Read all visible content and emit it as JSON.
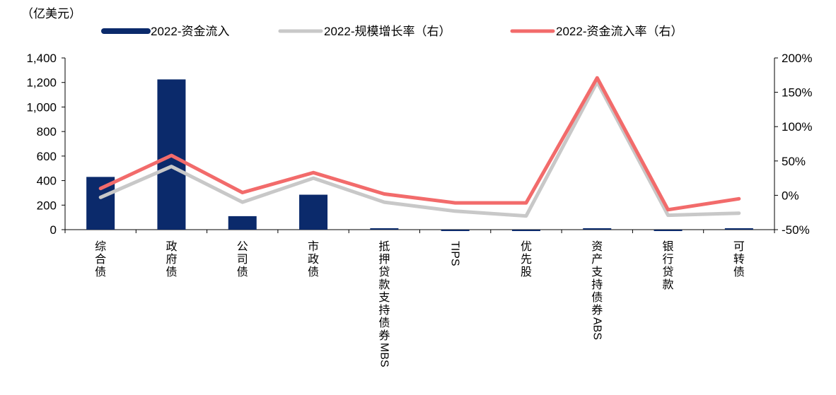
{
  "chart_data": {
    "type": "bar",
    "unit_label": "（亿美元）",
    "categories": [
      "综合债",
      "政府债",
      "公司债",
      "市政债",
      "抵押贷款支持债券MBS",
      "TIPS",
      "优先股",
      "资产支持债券ABS",
      "银行贷款",
      "可转债"
    ],
    "category_display": [
      {
        "label": "综合债",
        "rotated": false
      },
      {
        "label": "政府债",
        "rotated": false
      },
      {
        "label": "公司债",
        "rotated": false
      },
      {
        "label": "市政债",
        "rotated": false
      },
      {
        "label": "抵押贷款支持债券MBS",
        "rotated": false
      },
      {
        "label": "TIPS",
        "rotated": true
      },
      {
        "label": "优先股",
        "rotated": false
      },
      {
        "label": "资产支持债券ABS",
        "rotated": false
      },
      {
        "label": "银行贷款",
        "rotated": false
      },
      {
        "label": "可转债",
        "rotated": false
      }
    ],
    "left_axis": {
      "min": 0,
      "max": 1400,
      "ticks": [
        "0",
        "200",
        "400",
        "600",
        "800",
        "1,000",
        "1,200",
        "1,400"
      ],
      "tick_values": [
        0,
        200,
        400,
        600,
        800,
        1000,
        1200,
        1400
      ]
    },
    "right_axis": {
      "min": -50,
      "max": 200,
      "ticks": [
        "-50%",
        "0%",
        "50%",
        "100%",
        "150%",
        "200%"
      ],
      "tick_values": [
        -50,
        0,
        50,
        100,
        150,
        200
      ]
    },
    "legend_position": "top",
    "series": [
      {
        "name": "2022-资金流入",
        "type": "bar",
        "axis": "left",
        "color": "#0b2a6b",
        "values": [
          430,
          1225,
          110,
          285,
          2,
          -8,
          -10,
          2,
          -8,
          2
        ]
      },
      {
        "name": "2022-规模增长率（右）",
        "type": "line",
        "axis": "right",
        "color": "#c8c8c8",
        "values": [
          -3,
          42,
          -10,
          25,
          -10,
          -23,
          -30,
          165,
          -29,
          -26
        ]
      },
      {
        "name": "2022-资金流入率（右）",
        "type": "line",
        "axis": "right",
        "color": "#f26b6b",
        "values": [
          10,
          58,
          4,
          33,
          2,
          -11,
          -11,
          171,
          -21,
          -5
        ]
      }
    ]
  }
}
